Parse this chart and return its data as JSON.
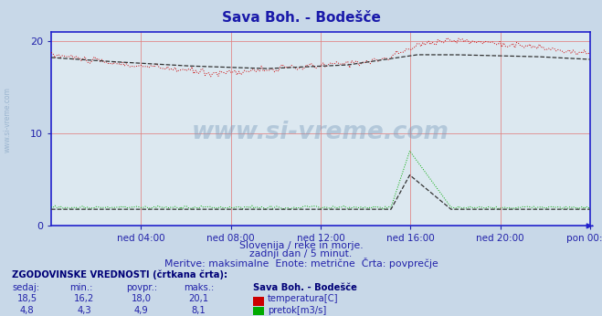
{
  "title": "Sava Boh. - Bodešče",
  "title_color": "#1a1aaa",
  "bg_color": "#c8d8e8",
  "plot_bg_color": "#dce8f0",
  "grid_color": "#e08080",
  "text_color": "#2222aa",
  "watermark": "www.si-vreme.com",
  "subtitle1": "Slovenija / reke in morje.",
  "subtitle2": "zadnji dan / 5 minut.",
  "subtitle3": "Meritve: maksimalne  Enote: metrične  Črta: povprečje",
  "xtick_labels": [
    "ned 04:00",
    "ned 08:00",
    "ned 12:00",
    "ned 16:00",
    "ned 20:00",
    "pon 00:00"
  ],
  "ylim": [
    0,
    21
  ],
  "ytick_values": [
    0,
    10,
    20
  ],
  "temp_color": "#cc0000",
  "temp_avg_color": "#333333",
  "flow_color": "#00aa00",
  "flow_avg_color": "#333333",
  "border_color": "#2222cc",
  "table_header_color": "#000077",
  "table_data_color": "#2222aa",
  "legend_title": "Sava Boh. - Bodešče",
  "legend_temp_color": "#cc0000",
  "legend_flow_color": "#00aa00",
  "stats_sedaj": [
    18.5,
    4.8
  ],
  "stats_min": [
    16.2,
    4.3
  ],
  "stats_povpr": [
    18.0,
    4.9
  ],
  "stats_maks": [
    20.1,
    8.1
  ]
}
